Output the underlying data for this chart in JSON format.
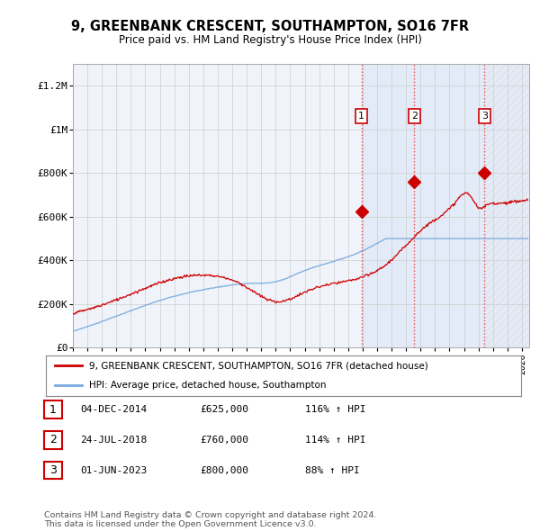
{
  "title": "9, GREENBANK CRESCENT, SOUTHAMPTON, SO16 7FR",
  "subtitle": "Price paid vs. HM Land Registry's House Price Index (HPI)",
  "ylabel_ticks": [
    "£0",
    "£200K",
    "£400K",
    "£600K",
    "£800K",
    "£1M",
    "£1.2M"
  ],
  "ytick_values": [
    0,
    200000,
    400000,
    600000,
    800000,
    1000000,
    1200000
  ],
  "ylim": [
    0,
    1300000
  ],
  "xlim_start": 1995.0,
  "xlim_end": 2026.5,
  "sale_dates": [
    2014.92,
    2018.56,
    2023.42
  ],
  "sale_prices": [
    625000,
    760000,
    800000
  ],
  "sale_labels": [
    "1",
    "2",
    "3"
  ],
  "sale_color": "#cc0000",
  "hpi_color": "#7aaadd",
  "vline_color": "#ee3333",
  "shade_color": "#ddeeff",
  "legend_line1": "9, GREENBANK CRESCENT, SOUTHAMPTON, SO16 7FR (detached house)",
  "legend_line2": "HPI: Average price, detached house, Southampton",
  "table_rows": [
    {
      "num": "1",
      "date": "04-DEC-2014",
      "price": "£625,000",
      "hpi": "116% ↑ HPI"
    },
    {
      "num": "2",
      "date": "24-JUL-2018",
      "price": "£760,000",
      "hpi": "114% ↑ HPI"
    },
    {
      "num": "3",
      "date": "01-JUN-2023",
      "price": "£800,000",
      "hpi": "88% ↑ HPI"
    }
  ],
  "footer": "Contains HM Land Registry data © Crown copyright and database right 2024.\nThis data is licensed under the Open Government Licence v3.0.",
  "background_color": "#ffffff",
  "grid_color": "#cccccc"
}
